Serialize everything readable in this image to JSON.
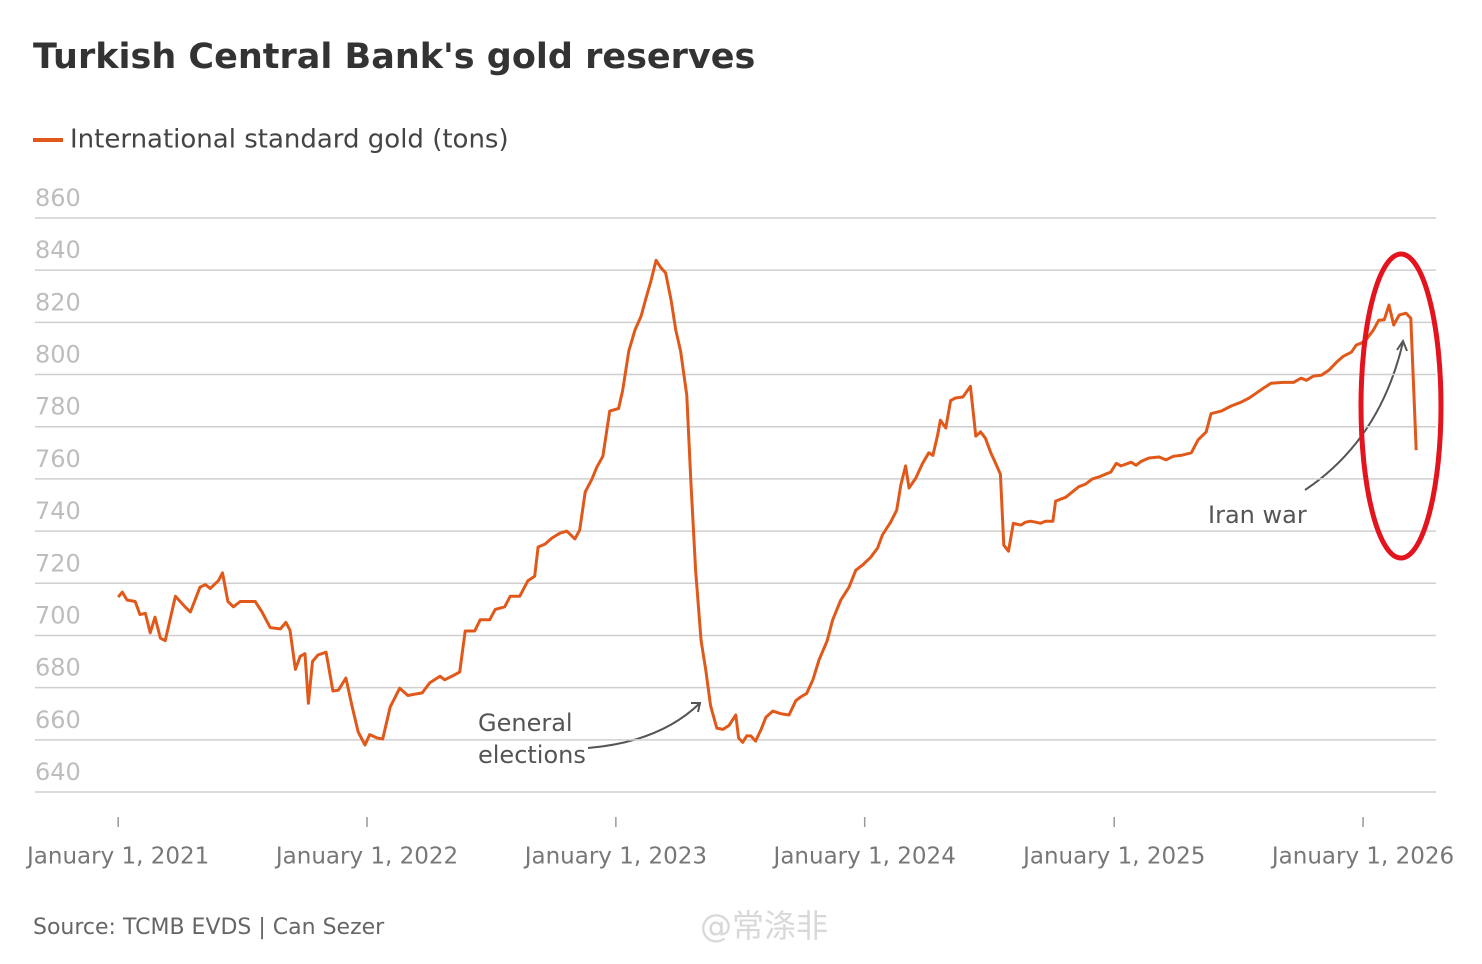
{
  "chart_data": {
    "type": "line",
    "title": "Turkish Central Bank's gold reserves",
    "source": "Source: TCMB EVDS | Can Sezer",
    "watermark": "@常涤非",
    "series": [
      {
        "name": "International standard gold (tons)",
        "color": "#e0591a",
        "x": [
          "2021-01-01",
          "2021-01-07",
          "2021-01-14",
          "2021-01-26",
          "2021-02-02",
          "2021-02-10",
          "2021-02-17",
          "2021-02-24",
          "2021-03-04",
          "2021-03-11",
          "2021-03-26",
          "2021-04-09",
          "2021-04-17",
          "2021-05-01",
          "2021-05-09",
          "2021-05-16",
          "2021-05-28",
          "2021-06-03",
          "2021-06-11",
          "2021-06-19",
          "2021-06-29",
          "2021-07-21",
          "2021-07-31",
          "2021-08-12",
          "2021-08-27",
          "2021-09-04",
          "2021-09-10",
          "2021-09-18",
          "2021-09-25",
          "2021-10-02",
          "2021-10-07",
          "2021-10-13",
          "2021-10-21",
          "2021-11-02",
          "2021-11-12",
          "2021-11-20",
          "2021-12-01",
          "2021-12-10",
          "2021-12-19",
          "2021-12-29",
          "2022-01-05",
          "2022-01-16",
          "2022-01-24",
          "2022-02-04",
          "2022-02-18",
          "2022-03-02",
          "2022-03-12",
          "2022-03-23",
          "2022-04-03",
          "2022-04-18",
          "2022-04-25",
          "2022-05-10",
          "2022-05-17",
          "2022-05-25",
          "2022-06-08",
          "2022-06-16",
          "2022-06-30",
          "2022-07-08",
          "2022-07-22",
          "2022-07-30",
          "2022-08-13",
          "2022-08-25",
          "2022-09-04",
          "2022-09-09",
          "2022-09-19",
          "2022-09-29",
          "2022-10-11",
          "2022-10-21",
          "2022-11-02",
          "2022-11-09",
          "2022-11-17",
          "2022-11-27",
          "2022-12-04",
          "2022-12-13",
          "2022-12-23",
          "2023-01-05",
          "2023-01-11",
          "2023-01-20",
          "2023-01-29",
          "2023-02-07",
          "2023-02-14",
          "2023-02-21",
          "2023-03-01",
          "2023-03-08",
          "2023-03-15",
          "2023-03-23",
          "2023-03-30",
          "2023-04-06",
          "2023-04-15",
          "2023-04-21",
          "2023-04-28",
          "2023-05-06",
          "2023-05-13",
          "2023-05-20",
          "2023-05-29",
          "2023-06-07",
          "2023-06-16",
          "2023-06-26",
          "2023-06-30",
          "2023-07-06",
          "2023-07-12",
          "2023-07-18",
          "2023-07-25",
          "2023-08-02",
          "2023-08-09",
          "2023-08-19",
          "2023-08-31",
          "2023-09-12",
          "2023-09-22",
          "2023-09-29",
          "2023-10-08",
          "2023-10-17",
          "2023-10-26",
          "2023-11-07",
          "2023-11-15",
          "2023-11-27",
          "2023-12-09",
          "2023-12-19",
          "2023-12-29",
          "2024-01-10",
          "2024-01-20",
          "2024-01-27",
          "2024-02-08",
          "2024-02-17",
          "2024-02-23",
          "2024-03-01",
          "2024-03-06",
          "2024-03-16",
          "2024-03-26",
          "2024-04-04",
          "2024-04-10",
          "2024-04-17",
          "2024-04-21",
          "2024-04-29",
          "2024-05-06",
          "2024-05-13",
          "2024-05-24",
          "2024-06-04",
          "2024-06-12",
          "2024-06-19",
          "2024-06-26",
          "2024-07-04",
          "2024-07-11",
          "2024-07-18",
          "2024-07-23",
          "2024-07-30",
          "2024-08-06",
          "2024-08-17",
          "2024-08-24",
          "2024-08-31",
          "2024-09-08",
          "2024-09-15",
          "2024-09-22",
          "2024-10-03",
          "2024-10-07",
          "2024-10-22",
          "2024-10-29",
          "2024-11-10",
          "2024-11-20",
          "2024-11-30",
          "2024-12-09",
          "2024-12-19",
          "2024-12-27",
          "2025-01-04",
          "2025-01-11",
          "2025-01-26",
          "2025-02-02",
          "2025-02-10",
          "2025-02-21",
          "2025-03-08",
          "2025-03-18",
          "2025-03-29",
          "2025-04-09",
          "2025-04-24",
          "2025-05-04",
          "2025-05-16",
          "2025-05-23",
          "2025-06-07",
          "2025-06-22",
          "2025-07-06",
          "2025-07-18",
          "2025-07-29",
          "2025-08-08",
          "2025-08-19",
          "2025-09-06",
          "2025-09-21",
          "2025-10-02",
          "2025-10-10",
          "2025-10-20",
          "2025-11-01",
          "2025-11-12",
          "2025-11-23",
          "2025-12-03",
          "2025-12-15",
          "2025-12-22",
          "2025-12-29",
          "2026-01-05",
          "2026-01-16",
          "2026-01-24",
          "2026-02-01",
          "2026-02-08",
          "2026-02-15",
          "2026-02-23",
          "2026-03-05",
          "2026-03-12",
          "2026-03-20"
        ],
        "values": [
          714.7,
          716.6,
          713.6,
          713,
          708,
          708.5,
          701,
          707,
          699,
          698,
          715,
          711,
          709,
          718.5,
          719.5,
          718,
          721,
          724,
          713,
          711,
          713,
          713,
          709,
          703,
          702.5,
          705,
          702,
          687,
          692,
          693,
          674,
          690,
          692.5,
          693.6,
          678.7,
          679,
          683.7,
          673,
          663,
          658,
          662,
          660.7,
          660.3,
          672.6,
          679.8,
          677,
          677.5,
          678,
          681.8,
          684.4,
          683,
          685,
          686,
          701.7,
          701.7,
          706,
          706,
          710,
          711,
          715,
          715,
          721,
          722.7,
          733.9,
          735,
          737.3,
          739.2,
          740,
          737,
          740.4,
          755,
          760,
          764.5,
          768.7,
          786,
          787,
          794,
          809,
          817,
          822.4,
          829,
          835.4,
          843.8,
          841,
          839,
          828.5,
          817,
          809,
          792,
          759.5,
          725,
          698,
          686.7,
          673,
          664.5,
          664,
          665.5,
          669.5,
          660.7,
          659,
          661.5,
          661.5,
          659.5,
          664,
          668.6,
          671,
          670,
          669.5,
          675,
          676.4,
          677.8,
          683,
          690.6,
          698,
          705.9,
          713.6,
          718.5,
          725,
          727,
          730,
          733.5,
          738.5,
          743.4,
          748,
          757.6,
          765,
          756.5,
          760.3,
          766,
          770,
          769,
          776.8,
          782.5,
          779.5,
          790,
          791,
          791.4,
          795.5,
          776.4,
          778,
          775.6,
          770,
          766,
          761.8,
          734.6,
          732.3,
          743,
          742.3,
          743.4,
          743.8,
          743.4,
          743,
          743.8,
          743.8,
          751.5,
          753,
          754.5,
          757,
          758,
          760,
          760.7,
          761.8,
          762.6,
          766,
          765,
          766.4,
          765.2,
          766.8,
          768,
          768.4,
          767.3,
          768.7,
          769,
          770,
          775,
          778,
          785,
          786,
          788,
          789.4,
          791,
          793,
          794.8,
          796.7,
          797,
          797,
          798.6,
          797.8,
          799.4,
          799.8,
          801.7,
          804.7,
          807,
          808.6,
          811.3,
          812,
          813.2,
          817,
          820.8,
          821,
          826.6,
          819,
          822.8,
          823.5,
          821.6,
          771
        ]
      }
    ],
    "xlim": [
      "2020-09-01",
      "2026-04-18"
    ],
    "xticks": [
      {
        "value": "2021-01-01",
        "label": "January 1, 2021"
      },
      {
        "value": "2022-01-01",
        "label": "January 1, 2022"
      },
      {
        "value": "2023-01-01",
        "label": "January 1, 2023"
      },
      {
        "value": "2024-01-01",
        "label": "January 1, 2024"
      },
      {
        "value": "2025-01-01",
        "label": "January 1, 2025"
      },
      {
        "value": "2026-01-01",
        "label": "January 1, 2026"
      }
    ],
    "ylim": [
      640,
      860
    ],
    "yticks": [
      640,
      660,
      680,
      700,
      720,
      740,
      760,
      780,
      800,
      820,
      840,
      860
    ],
    "grid": true,
    "annotations": [
      {
        "lines": [
          "General",
          "elections"
        ]
      },
      {
        "lines": [
          "Iran war"
        ]
      }
    ]
  }
}
